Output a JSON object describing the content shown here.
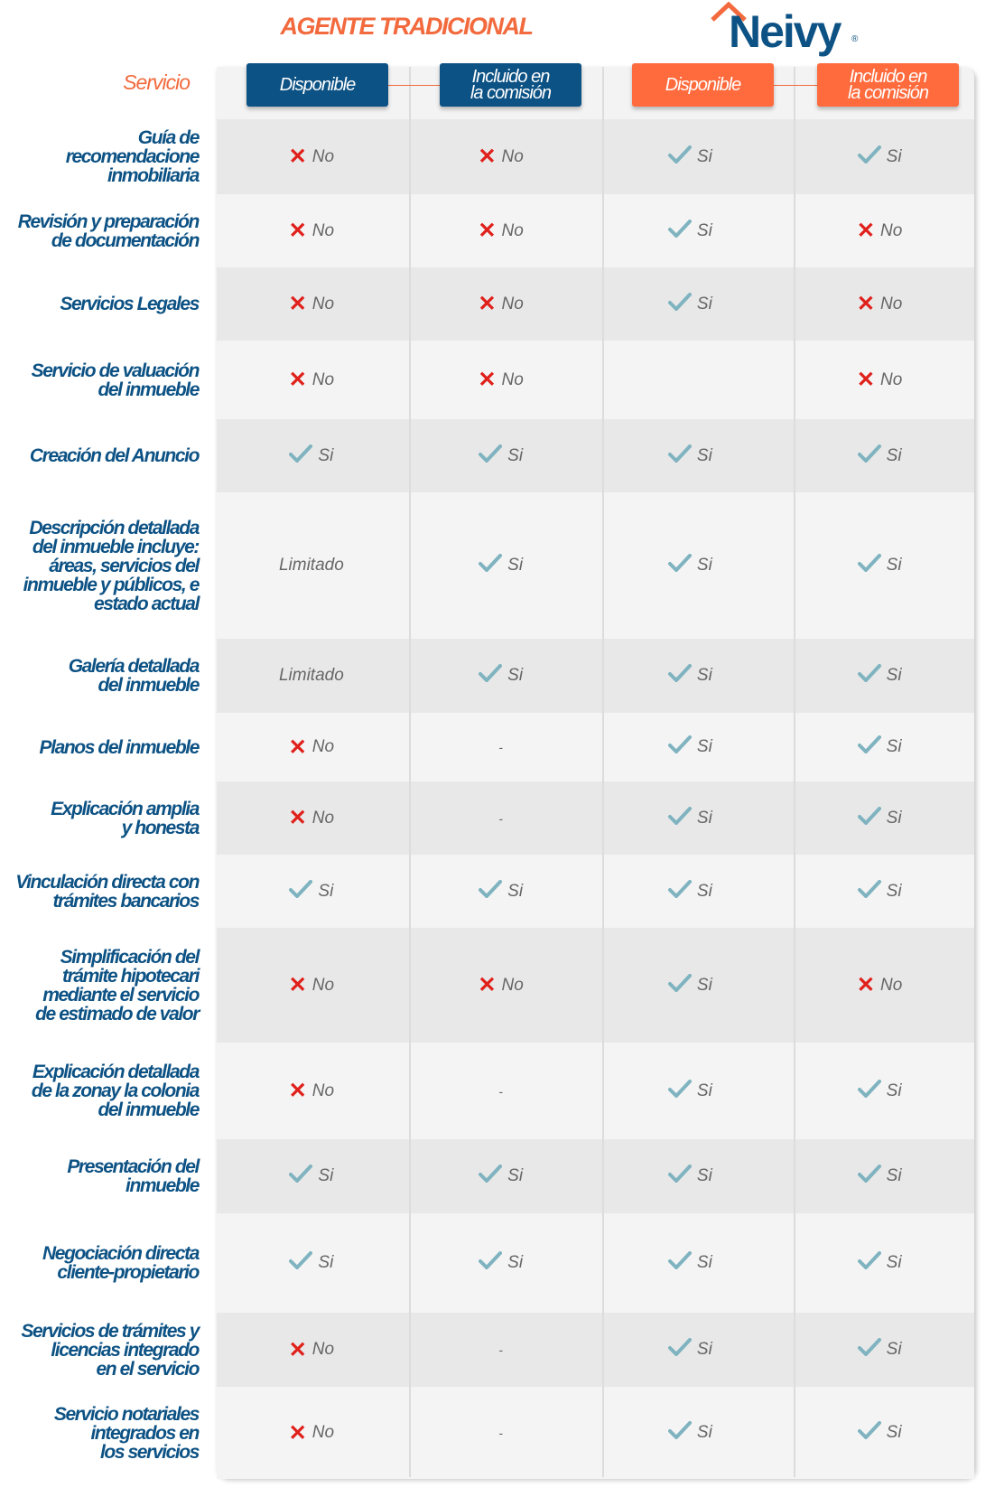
{
  "header": {
    "traditional_title": "AGENTE TRADICIONAL",
    "brand": "Neivy",
    "brand_mark": "®",
    "service_label": "Servicio"
  },
  "columns": [
    {
      "label": "Disponible",
      "group": "traditional"
    },
    {
      "label": "Incluido en\nla comisión",
      "group": "traditional"
    },
    {
      "label": "Disponible",
      "group": "neivy"
    },
    {
      "label": "Incluido en\nla comisión",
      "group": "neivy"
    }
  ],
  "colors": {
    "navy": "#0d5284",
    "orange": "#ff6b3d",
    "check": "#7fb3c0",
    "cross": "#e0201b"
  },
  "rows": [
    {
      "label": "Guía de\nrecomendacione\ninmobiliaria",
      "values": [
        "No",
        "No",
        "Si",
        "Si"
      ]
    },
    {
      "label": "Revisión y preparación\nde documentación",
      "values": [
        "No",
        "No",
        "Si",
        "No"
      ]
    },
    {
      "label": "Servicios Legales",
      "values": [
        "No",
        "No",
        "Si",
        "No"
      ]
    },
    {
      "label": "Servicio de valuación\ndel inmueble",
      "values": [
        "No",
        "No",
        "",
        "No"
      ]
    },
    {
      "label": "Creación del Anuncio",
      "values": [
        "Si",
        "Si",
        "Si",
        "Si"
      ]
    },
    {
      "label": "Descripción detallada\ndel inmueble incluye:\náreas, servicios del\ninmueble y públicos, e\nestado actual",
      "values": [
        "Limitado",
        "Si",
        "Si",
        "Si"
      ]
    },
    {
      "label": "Galería detallada\ndel inmueble",
      "values": [
        "Limitado",
        "Si",
        "Si",
        "Si"
      ]
    },
    {
      "label": "Planos del inmueble",
      "values": [
        "No",
        "-",
        "Si",
        "Si"
      ]
    },
    {
      "label": "Explicación amplia\ny honesta",
      "values": [
        "No",
        "-",
        "Si",
        "Si"
      ]
    },
    {
      "label": "Vinculación directa con\ntrámites bancarios",
      "values": [
        "Si",
        "Si",
        "Si",
        "Si"
      ]
    },
    {
      "label": "Simplificación del\ntrámite hipotecari\nmediante el servicio\nde estimado de valor",
      "values": [
        "No",
        "No",
        "Si",
        "No"
      ]
    },
    {
      "label": "Explicación detallada\nde la zonay la colonia\ndel inmueble",
      "values": [
        "No",
        "-",
        "Si",
        "Si"
      ]
    },
    {
      "label": "Presentación del\ninmueble",
      "values": [
        "Si",
        "Si",
        "Si",
        "Si"
      ]
    },
    {
      "label": "Negociación directa\ncliente-propietario",
      "values": [
        "Si",
        "Si",
        "Si",
        "Si"
      ]
    },
    {
      "label": "Servicios de trámites y\nlicencias integrado\nen el servicio",
      "values": [
        "No",
        "-",
        "Si",
        "Si"
      ]
    },
    {
      "label": "Servicio notariales\nintegrados en\nlos servicios",
      "values": [
        "No",
        "-",
        "Si",
        "Si"
      ]
    }
  ]
}
